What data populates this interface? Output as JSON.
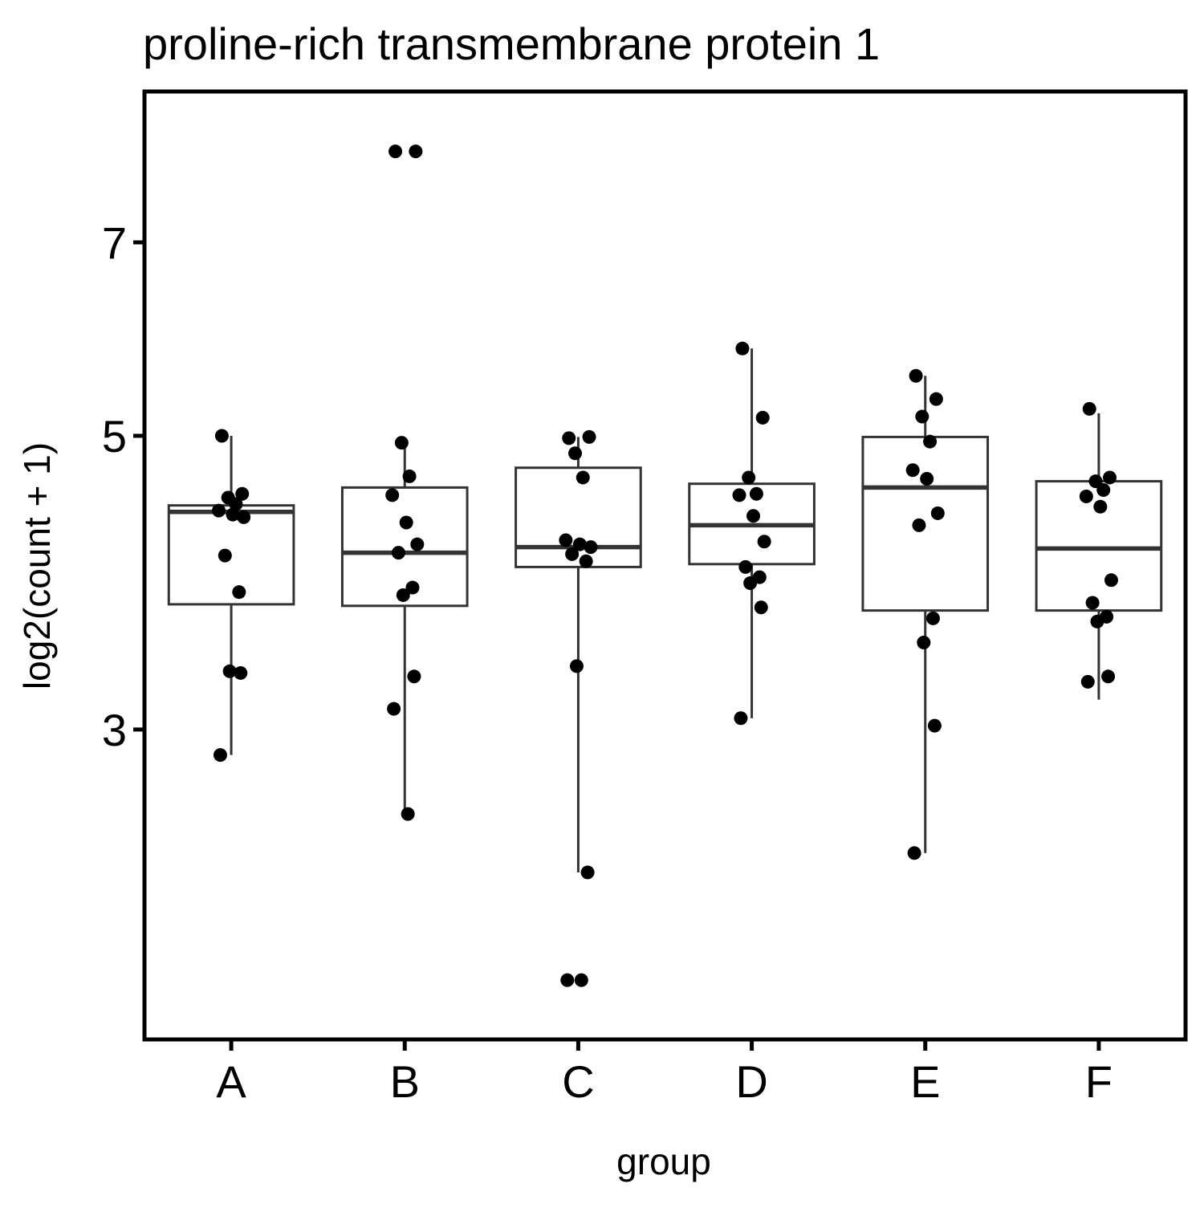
{
  "chart_data": {
    "type": "boxplot",
    "title": "proline-rich transmembrane protein 1",
    "xlabel": "group",
    "ylabel": "log2(count + 1)",
    "categories": [
      "A",
      "B",
      "C",
      "D",
      "E",
      "F"
    ],
    "y_scale": "log",
    "y_ticks": [
      3,
      5,
      7
    ],
    "ylim": [
      1.75,
      9.1
    ],
    "grid": false,
    "legend": "none",
    "colors": {
      "box": "#333333",
      "point": "#000000",
      "frame": "#000000"
    },
    "boxes": [
      {
        "name": "A",
        "q1": 3.73,
        "median": 4.38,
        "q3": 4.43,
        "whisker_low": 2.87,
        "whisker_high": 5.0
      },
      {
        "name": "B",
        "q1": 3.72,
        "median": 4.08,
        "q3": 4.57,
        "whisker_low": 2.59,
        "whisker_high": 4.94
      },
      {
        "name": "C",
        "q1": 3.98,
        "median": 4.12,
        "q3": 4.73,
        "whisker_low": 2.34,
        "whisker_high": 4.99
      },
      {
        "name": "D",
        "q1": 4.0,
        "median": 4.28,
        "q3": 4.6,
        "whisker_low": 3.06,
        "whisker_high": 5.82
      },
      {
        "name": "E",
        "q1": 3.69,
        "median": 4.57,
        "q3": 4.99,
        "whisker_low": 2.42,
        "whisker_high": 5.55
      },
      {
        "name": "F",
        "q1": 3.69,
        "median": 4.11,
        "q3": 4.62,
        "whisker_low": 3.16,
        "whisker_high": 5.2
      }
    ],
    "points": [
      {
        "group": "A",
        "values": [
          5.0,
          4.52,
          4.49,
          4.44,
          4.39,
          4.36,
          4.34,
          4.06,
          3.81,
          3.32,
          3.31,
          2.87
        ]
      },
      {
        "group": "B",
        "values": [
          8.2,
          8.2,
          4.94,
          4.66,
          4.51,
          4.3,
          4.14,
          4.08,
          3.84,
          3.79,
          3.29,
          3.11,
          2.59
        ]
      },
      {
        "group": "C",
        "values": [
          4.98,
          4.99,
          4.85,
          4.65,
          4.17,
          4.14,
          4.12,
          4.07,
          4.02,
          3.35,
          2.34,
          1.94,
          1.94
        ]
      },
      {
        "group": "D",
        "values": [
          5.82,
          5.16,
          4.65,
          4.52,
          4.51,
          4.35,
          4.16,
          3.98,
          3.91,
          3.87,
          3.71,
          3.06
        ]
      },
      {
        "group": "E",
        "values": [
          5.55,
          5.33,
          5.17,
          4.95,
          4.71,
          4.64,
          4.37,
          4.28,
          3.64,
          3.49,
          3.02,
          2.42
        ]
      },
      {
        "group": "F",
        "values": [
          5.24,
          4.65,
          4.62,
          4.55,
          4.5,
          4.42,
          3.89,
          3.74,
          3.65,
          3.62,
          3.29,
          3.26
        ]
      }
    ]
  }
}
